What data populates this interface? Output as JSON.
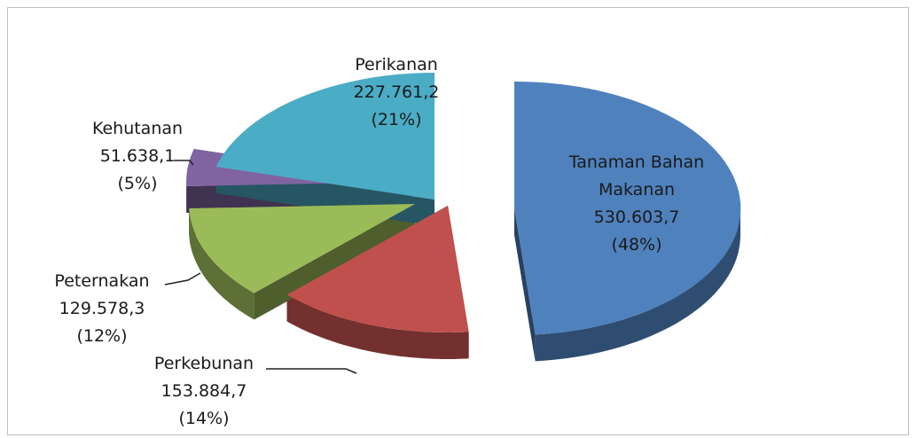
{
  "chart_data": {
    "type": "pie",
    "categories": [
      "Tanaman Bahan Makanan",
      "Perkebunan",
      "Peternakan",
      "Kehutanan",
      "Perikanan"
    ],
    "values": [
      530603.7,
      153884.7,
      129578.3,
      51638.1,
      227761.2
    ],
    "value_labels": [
      "530.603,7",
      "153.884,7",
      "129.578,3",
      "51.638,1",
      "227.761,2"
    ],
    "percent_labels": [
      "(48%)",
      "(14%)",
      "(12%)",
      "(5%)",
      "(21%)"
    ],
    "colors": [
      "#4f81bd",
      "#c0504d",
      "#9bbb59",
      "#8064a2",
      "#4bacc6"
    ]
  }
}
